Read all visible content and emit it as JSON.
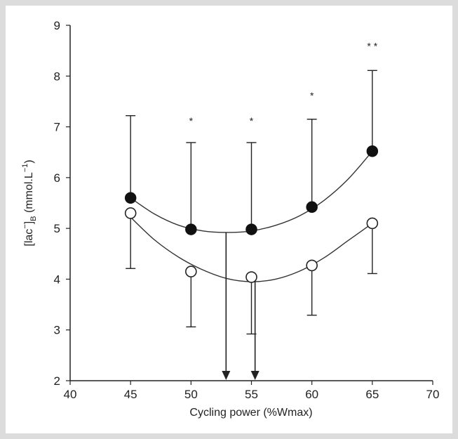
{
  "chart_data": {
    "type": "scatter",
    "title": "",
    "xlabel": "Cycling power (%Wmax)",
    "ylabel": "[lac⁻]B (mmol.L⁻¹)",
    "ylabel_parts": {
      "main": "[lac",
      "sup1": "−",
      "close": "]",
      "sub": "B",
      "unit": " (mmol.L",
      "sup2": "−1",
      "end": ")"
    },
    "xlim": [
      40,
      70
    ],
    "ylim": [
      2,
      9
    ],
    "xticks": [
      40,
      45,
      50,
      55,
      60,
      65,
      70
    ],
    "yticks": [
      2,
      3,
      4,
      5,
      6,
      7,
      8,
      9
    ],
    "grid": false,
    "series": [
      {
        "marker": "filled-circle",
        "x": [
          45,
          50,
          55,
          60,
          65
        ],
        "y": [
          5.6,
          4.98,
          4.98,
          5.42,
          6.52
        ],
        "err_upper": [
          7.22,
          6.69,
          6.69,
          7.15,
          8.11
        ],
        "fit_x": [
          45,
          47,
          49,
          51,
          53,
          55,
          57,
          59,
          61,
          63,
          65
        ],
        "fit_y": [
          5.6,
          5.28,
          5.06,
          4.95,
          4.92,
          4.95,
          5.06,
          5.25,
          5.55,
          5.97,
          6.52
        ]
      },
      {
        "marker": "open-circle",
        "x": [
          45,
          50,
          55,
          60,
          65
        ],
        "y": [
          5.3,
          4.15,
          4.04,
          4.27,
          5.1
        ],
        "err_lower": [
          4.21,
          3.06,
          2.92,
          3.29,
          4.11
        ],
        "fit_x": [
          45,
          47,
          49,
          51,
          53,
          55,
          57,
          59,
          61,
          63,
          65
        ],
        "fit_y": [
          5.22,
          4.77,
          4.43,
          4.18,
          4.01,
          3.95,
          4.0,
          4.16,
          4.42,
          4.76,
          5.1
        ]
      }
    ],
    "annotations": [
      {
        "text": "*",
        "x": 50,
        "y": 7.05
      },
      {
        "text": "*",
        "x": 55,
        "y": 7.05
      },
      {
        "text": "*",
        "x": 60,
        "y": 7.55
      },
      {
        "text": "* *",
        "x": 65,
        "y": 8.52
      }
    ],
    "arrows": [
      {
        "x": 52.9,
        "y_from": 4.92,
        "y_to": 2
      },
      {
        "x": 55.3,
        "y_from": 3.95,
        "y_to": 2
      }
    ]
  }
}
